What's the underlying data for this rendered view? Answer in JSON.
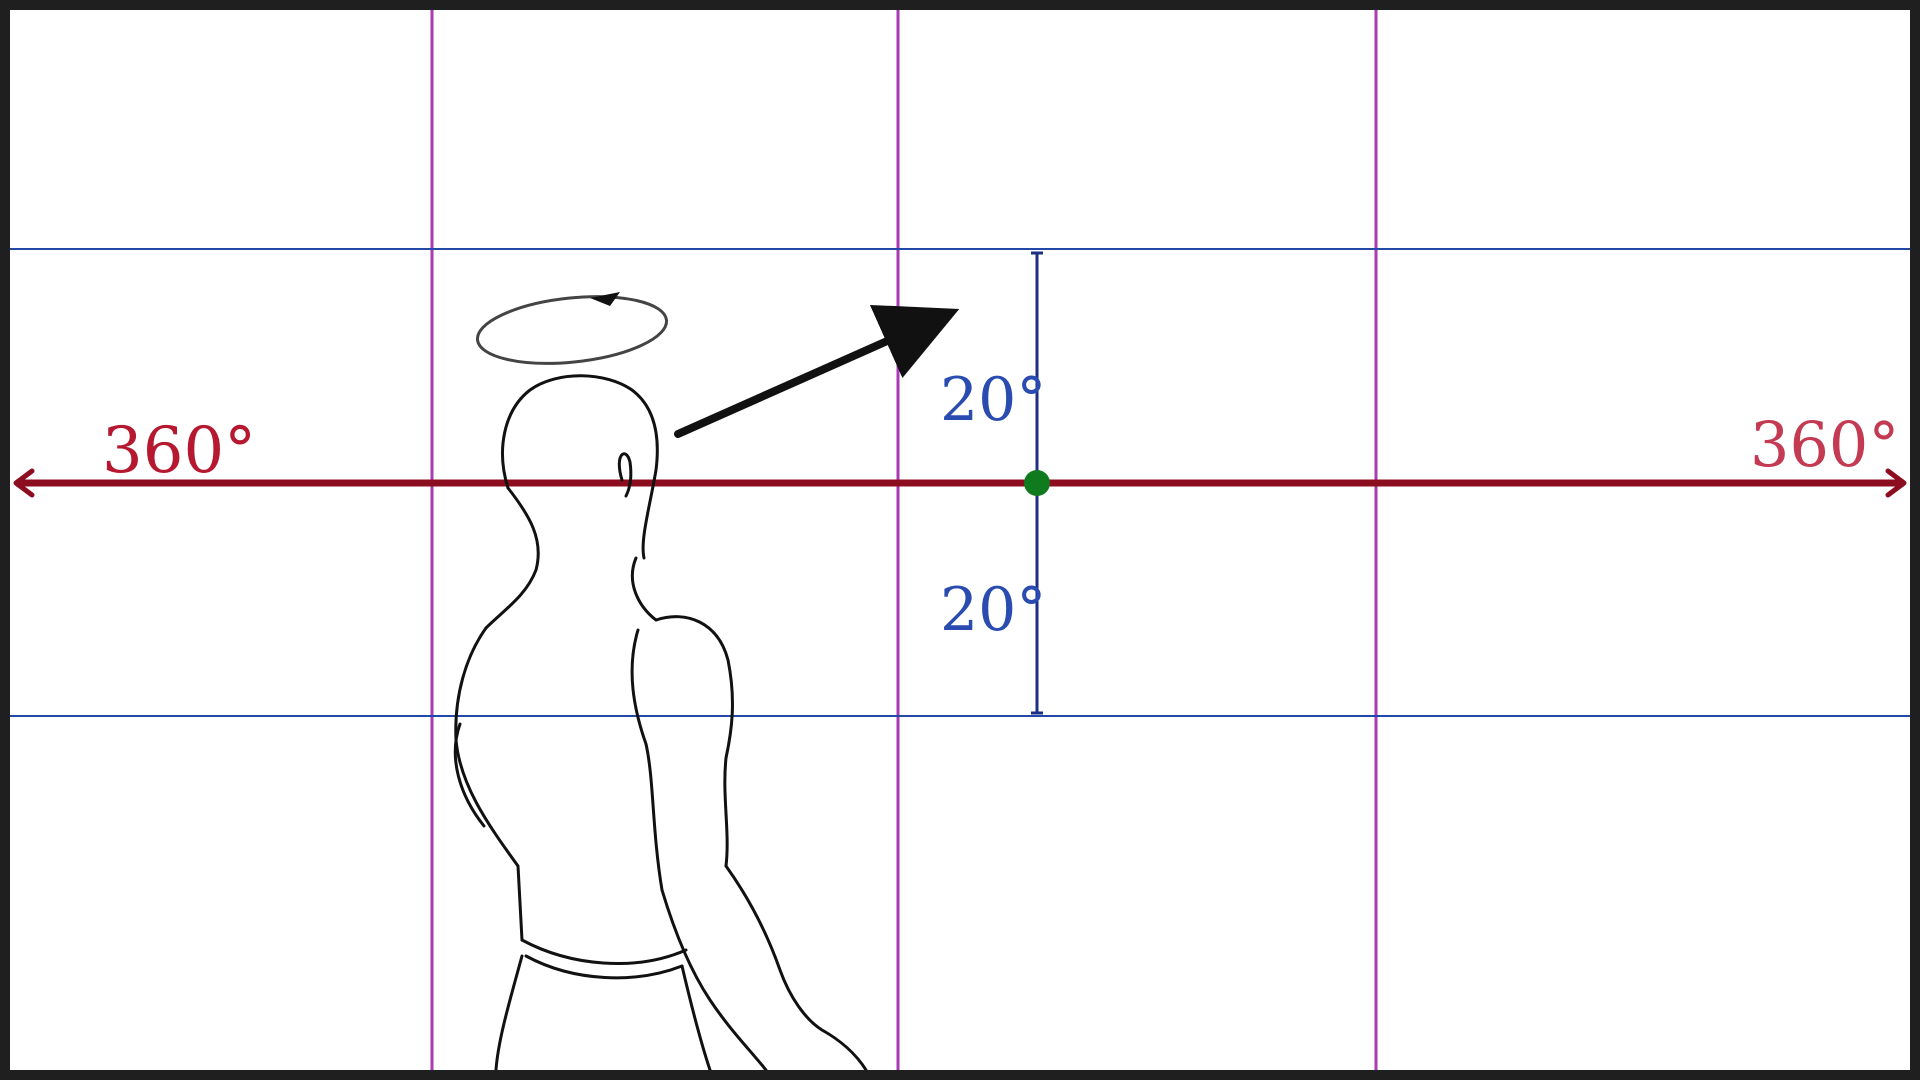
{
  "labels": {
    "horizontal_left": "360°",
    "horizontal_right": "360°",
    "vertical_up": "20°",
    "vertical_down": "20°"
  },
  "colors": {
    "background_frame": "#1f1f1f",
    "canvas": "#ffffff",
    "horizon_line": "#8b0d1f",
    "label_red": "#b5182f",
    "guide_blue": "#2448a8",
    "guide_purple": "#a93ab4",
    "vertical_axis": "#1a2f86",
    "label_blue": "#2a4cb0",
    "center_dot": "#0f7a1e",
    "sketch": "#111111"
  },
  "icons": {
    "rotation": "circular-arrow-icon",
    "direction": "arrow-icon"
  }
}
